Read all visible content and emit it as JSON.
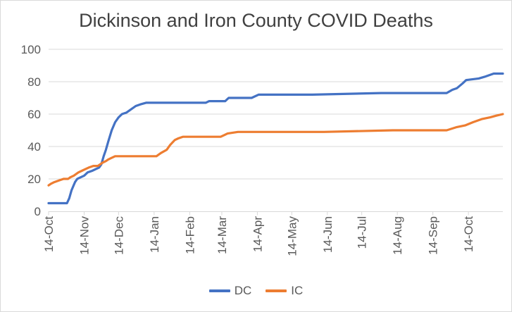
{
  "title": "Dickinson and Iron County COVID Deaths",
  "colors": {
    "dc_line": "#4472C4",
    "ic_line": "#ED7D31",
    "title_text": "#404040",
    "axis_text": "#595959",
    "gridline": "#D9D9D9",
    "axis_line": "#D9D9D9",
    "background": "#FFFFFF",
    "frame_border": "#D9D9D9"
  },
  "chart_data": {
    "type": "line",
    "title": "Dickinson and Iron County COVID Deaths",
    "xlabel": "",
    "ylabel": "",
    "ylim": [
      0,
      100
    ],
    "y_ticks": [
      0,
      20,
      40,
      60,
      80,
      100
    ],
    "grid": "horizontal",
    "legend_position": "bottom",
    "x_unit": "days since 14-Oct (first tick)",
    "x_max_day": 396,
    "x_tick_days": [
      0,
      31,
      61,
      92,
      123,
      151,
      182,
      212,
      243,
      273,
      304,
      335,
      366
    ],
    "x_tick_labels": [
      "14-Oct",
      "14-Nov",
      "14-Dec",
      "14-Jan",
      "14-Feb",
      "14-Mar",
      "14-Apr",
      "14-May",
      "14-Jun",
      "14-Jul",
      "14-Aug",
      "14-Sep",
      "14-Oct"
    ],
    "series": [
      {
        "name": "DC",
        "color": "#4472C4",
        "points": [
          [
            0,
            5
          ],
          [
            16,
            5
          ],
          [
            18,
            8
          ],
          [
            20,
            13
          ],
          [
            23,
            18
          ],
          [
            25,
            20
          ],
          [
            28,
            21
          ],
          [
            31,
            22
          ],
          [
            34,
            24
          ],
          [
            38,
            25
          ],
          [
            41,
            26
          ],
          [
            44,
            27
          ],
          [
            46,
            29
          ],
          [
            48,
            34
          ],
          [
            50,
            38
          ],
          [
            52,
            43
          ],
          [
            55,
            50
          ],
          [
            58,
            55
          ],
          [
            61,
            58
          ],
          [
            64,
            60
          ],
          [
            68,
            61
          ],
          [
            72,
            63
          ],
          [
            76,
            65
          ],
          [
            80,
            66
          ],
          [
            85,
            67
          ],
          [
            137,
            67
          ],
          [
            140,
            68
          ],
          [
            154,
            68
          ],
          [
            157,
            70
          ],
          [
            177,
            70
          ],
          [
            183,
            72
          ],
          [
            230,
            72
          ],
          [
            290,
            73
          ],
          [
            347,
            73
          ],
          [
            352,
            75
          ],
          [
            356,
            76
          ],
          [
            361,
            79
          ],
          [
            364,
            81
          ],
          [
            375,
            82
          ],
          [
            380,
            83
          ],
          [
            388,
            85
          ],
          [
            396,
            85
          ]
        ]
      },
      {
        "name": "IC",
        "color": "#ED7D31",
        "points": [
          [
            0,
            16
          ],
          [
            2,
            17
          ],
          [
            5,
            18
          ],
          [
            9,
            19
          ],
          [
            13,
            20
          ],
          [
            17,
            20
          ],
          [
            19,
            21
          ],
          [
            22,
            22
          ],
          [
            24,
            23
          ],
          [
            26,
            24
          ],
          [
            29,
            25
          ],
          [
            32,
            26
          ],
          [
            35,
            27
          ],
          [
            39,
            28
          ],
          [
            43,
            28
          ],
          [
            45,
            29
          ],
          [
            47,
            30
          ],
          [
            50,
            31
          ],
          [
            52,
            32
          ],
          [
            55,
            33
          ],
          [
            58,
            34
          ],
          [
            94,
            34
          ],
          [
            98,
            36
          ],
          [
            103,
            38
          ],
          [
            106,
            41
          ],
          [
            110,
            44
          ],
          [
            113,
            45
          ],
          [
            117,
            46
          ],
          [
            150,
            46
          ],
          [
            153,
            47
          ],
          [
            156,
            48
          ],
          [
            165,
            49
          ],
          [
            240,
            49
          ],
          [
            300,
            50
          ],
          [
            347,
            50
          ],
          [
            356,
            52
          ],
          [
            363,
            53
          ],
          [
            370,
            55
          ],
          [
            378,
            57
          ],
          [
            385,
            58
          ],
          [
            390,
            59
          ],
          [
            396,
            60
          ]
        ]
      }
    ]
  }
}
